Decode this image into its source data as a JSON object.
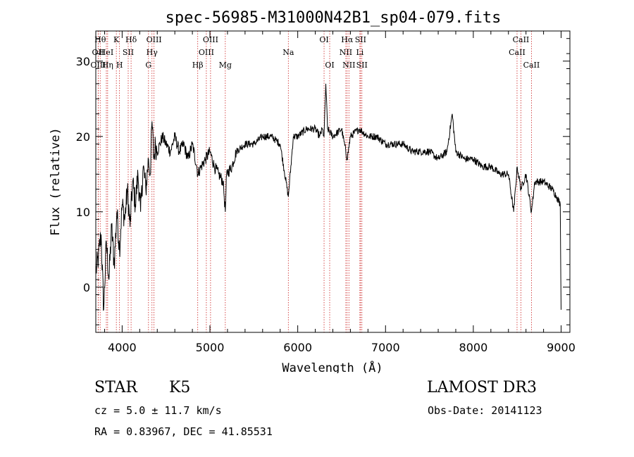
{
  "chart_data": {
    "type": "line",
    "title": "spec-56985-M31000N42B1_sp04-079.fits",
    "xlabel": "Wavelength (Å)",
    "ylabel": "Flux (relative)",
    "xlim": [
      3700,
      9100
    ],
    "ylim": [
      -6,
      34
    ],
    "xticks": [
      4000,
      5000,
      6000,
      7000,
      8000,
      9000
    ],
    "yticks": [
      0,
      10,
      20,
      30
    ],
    "series": [
      {
        "name": "spectrum",
        "x": [
          3700,
          3730,
          3760,
          3790,
          3820,
          3850,
          3880,
          3910,
          3940,
          3970,
          4000,
          4030,
          4060,
          4090,
          4120,
          4150,
          4180,
          4210,
          4240,
          4270,
          4300,
          4320,
          4340,
          4360,
          4380,
          4400,
          4430,
          4460,
          4500,
          4550,
          4600,
          4650,
          4700,
          4750,
          4800,
          4850,
          4861,
          4900,
          4950,
          5000,
          5050,
          5100,
          5150,
          5175,
          5190,
          5250,
          5300,
          5400,
          5500,
          5600,
          5700,
          5800,
          5893,
          5950,
          6000,
          6100,
          6200,
          6250,
          6280,
          6300,
          6320,
          6340,
          6400,
          6500,
          6563,
          6600,
          6700,
          6800,
          6900,
          7000,
          7100,
          7200,
          7300,
          7400,
          7500,
          7600,
          7700,
          7760,
          7800,
          7900,
          8000,
          8100,
          8200,
          8300,
          8400,
          8460,
          8500,
          8542,
          8600,
          8662,
          8700,
          8800,
          8900,
          8950,
          8990,
          9000
        ],
        "values": [
          2,
          4,
          7,
          -3,
          6,
          1,
          8,
          3,
          10,
          5,
          11,
          9,
          13,
          8,
          14,
          11,
          15,
          10,
          16,
          13,
          17,
          15,
          22,
          17,
          19,
          18,
          19,
          20,
          19,
          18,
          20,
          18,
          19,
          17,
          19,
          16,
          15,
          16,
          17,
          18,
          16,
          15,
          14,
          10,
          15,
          16,
          18,
          19,
          19,
          20,
          20,
          19,
          12,
          20,
          20,
          21,
          21,
          20,
          21,
          20,
          27,
          21,
          20,
          21,
          17,
          20,
          21,
          20,
          20,
          19,
          19,
          19,
          18,
          18,
          18,
          17,
          18,
          23,
          18,
          17,
          17,
          16,
          16,
          15,
          15,
          10,
          16,
          13,
          15,
          10,
          14,
          14,
          13,
          12,
          11,
          -3
        ]
      }
    ],
    "line_markers": [
      {
        "w": 3750,
        "label": "Hθ",
        "row": 1
      },
      {
        "w": 3727,
        "label": "OII",
        "row": 2
      },
      {
        "w": 3727,
        "label": "OIII",
        "row": 3
      },
      {
        "w": 3820,
        "label": "HeI",
        "row": 2
      },
      {
        "w": 3835,
        "label": "Hη",
        "row": 3
      },
      {
        "w": 3934,
        "label": "K",
        "row": 1
      },
      {
        "w": 3970,
        "label": "H",
        "row": 3
      },
      {
        "w": 4069,
        "label": "SII",
        "row": 2
      },
      {
        "w": 4102,
        "label": "Hδ",
        "row": 1
      },
      {
        "w": 4300,
        "label": "G",
        "row": 3
      },
      {
        "w": 4340,
        "label": "Hγ",
        "row": 2
      },
      {
        "w": 4363,
        "label": "OIII",
        "row": 1
      },
      {
        "w": 4861,
        "label": "Hβ",
        "row": 3
      },
      {
        "w": 4959,
        "label": "OIII",
        "row": 2
      },
      {
        "w": 5007,
        "label": "OIII",
        "row": 1
      },
      {
        "w": 5175,
        "label": "Mg",
        "row": 3
      },
      {
        "w": 5893,
        "label": "Na",
        "row": 2
      },
      {
        "w": 6300,
        "label": "OI",
        "row": 1
      },
      {
        "w": 6364,
        "label": "OI",
        "row": 3
      },
      {
        "w": 6548,
        "label": "NII",
        "row": 2
      },
      {
        "w": 6563,
        "label": "Hα",
        "row": 1
      },
      {
        "w": 6583,
        "label": "NII",
        "row": 3
      },
      {
        "w": 6708,
        "label": "Li",
        "row": 2
      },
      {
        "w": 6716,
        "label": "SII",
        "row": 1
      },
      {
        "w": 6731,
        "label": "SII",
        "row": 3
      },
      {
        "w": 8498,
        "label": "CaII",
        "row": 2
      },
      {
        "w": 8542,
        "label": "CaII",
        "row": 1
      },
      {
        "w": 8662,
        "label": "CaII",
        "row": 3
      }
    ],
    "colors": {
      "spectrum": "#000000",
      "marker": "#cc2222"
    }
  },
  "info": {
    "class": "STAR",
    "subclass": "K5",
    "survey": "LAMOST DR3",
    "cz": "cz = 5.0 ± 11.7 km/s",
    "obs_date": "Obs-Date: 20141123",
    "radec": "RA =   0.83967, DEC =  41.85531"
  }
}
